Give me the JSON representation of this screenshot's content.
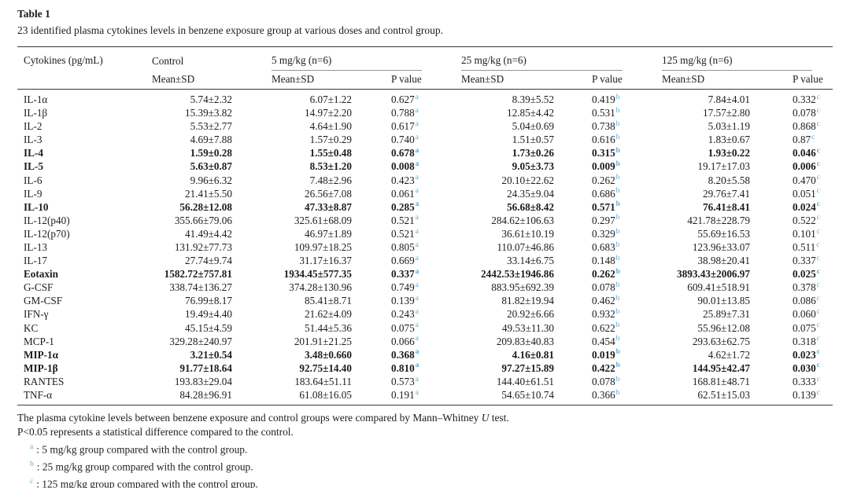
{
  "colors": {
    "superscript_blue": "#55acdb",
    "rule_dark": "#3a3a3a",
    "rule_light": "#949494"
  },
  "table": {
    "title": "Table 1",
    "caption": "23 identified plasma cytokines levels in benzene exposure group at various doses and control group.",
    "col_header": "Cytokines (pg/mL)",
    "groups": [
      {
        "label": "Control",
        "sub": [
          "Mean±SD"
        ]
      },
      {
        "label": "5 mg/kg (n=6)",
        "sub": [
          "Mean±SD",
          "P value"
        ]
      },
      {
        "label": "25 mg/kg (n=6)",
        "sub": [
          "Mean±SD",
          "P value"
        ]
      },
      {
        "label": "125 mg/kg (n=6)",
        "sub": [
          "Mean±SD",
          "P value"
        ]
      }
    ],
    "rows": [
      {
        "cytokine": "IL-1α",
        "bold": false,
        "control": "5.74±2.32",
        "doses": [
          {
            "mean": "6.07±1.22",
            "p": "0.627",
            "sup": "a"
          },
          {
            "mean": "8.39±5.52",
            "p": "0.419",
            "sup": "b"
          },
          {
            "mean": "7.84±4.01",
            "p": "0.332",
            "sup": "c"
          }
        ]
      },
      {
        "cytokine": "IL-1β",
        "bold": false,
        "control": "15.39±3.82",
        "doses": [
          {
            "mean": "14.97±2.20",
            "p": "0.788",
            "sup": "a"
          },
          {
            "mean": "12.85±4.42",
            "p": "0.531",
            "sup": "b"
          },
          {
            "mean": "17.57±2.80",
            "p": "0.078",
            "sup": "c"
          }
        ]
      },
      {
        "cytokine": "IL-2",
        "bold": false,
        "control": "5.53±2.77",
        "doses": [
          {
            "mean": "4.64±1.90",
            "p": "0.617",
            "sup": "a"
          },
          {
            "mean": "5.04±0.69",
            "p": "0.738",
            "sup": "b"
          },
          {
            "mean": "5.03±1.19",
            "p": "0.868",
            "sup": "c"
          }
        ]
      },
      {
        "cytokine": "IL-3",
        "bold": false,
        "control": "4.69±7.88",
        "doses": [
          {
            "mean": "1.57±0.29",
            "p": "0.740",
            "sup": "a"
          },
          {
            "mean": "1.51±0.57",
            "p": "0.616",
            "sup": "b"
          },
          {
            "mean": "1.83±0.67",
            "p": "0.87",
            "sup": "c"
          }
        ]
      },
      {
        "cytokine": "IL-4",
        "bold": true,
        "control": "1.59±0.28",
        "doses": [
          {
            "mean": "1.55±0.48",
            "p": "0.678",
            "sup": "a"
          },
          {
            "mean": "1.73±0.26",
            "p": "0.315",
            "sup": "b"
          },
          {
            "mean": "1.93±0.22",
            "p": "0.046",
            "sup": "c"
          }
        ]
      },
      {
        "cytokine": "IL-5",
        "bold": true,
        "control": "5.63±0.87",
        "doses": [
          {
            "mean": "8.53±1.20",
            "p": "0.008",
            "sup": "a"
          },
          {
            "mean": "9.05±3.73",
            "p": "0.009",
            "sup": "b"
          },
          {
            "mean": "19.17±17.03",
            "mean_bold": false,
            "p": "0.006",
            "sup": "c"
          }
        ]
      },
      {
        "cytokine": "IL-6",
        "bold": false,
        "control": "9.96±6.32",
        "doses": [
          {
            "mean": "7.48±2.96",
            "p": "0.423",
            "sup": "a"
          },
          {
            "mean": "20.10±22.62",
            "p": "0.262",
            "sup": "b"
          },
          {
            "mean": "8.20±5.58",
            "p": "0.470",
            "sup": "c"
          }
        ]
      },
      {
        "cytokine": "IL-9",
        "bold": false,
        "control": "21.41±5.50",
        "doses": [
          {
            "mean": "26.56±7.08",
            "p": "0.061",
            "sup": "a"
          },
          {
            "mean": "24.35±9.04",
            "p": "0.686",
            "sup": "b"
          },
          {
            "mean": "29.76±7.41",
            "p": "0.051",
            "sup": "c"
          }
        ]
      },
      {
        "cytokine": "IL-10",
        "bold": true,
        "control": "56.28±12.08",
        "doses": [
          {
            "mean": "47.33±8.87",
            "p": "0.285",
            "sup": "a"
          },
          {
            "mean": "56.68±8.42",
            "p": "0.571",
            "sup": "b"
          },
          {
            "mean": "76.41±8.41",
            "p": "0.024",
            "sup": "c"
          }
        ]
      },
      {
        "cytokine": "IL-12(p40)",
        "bold": false,
        "control": "355.66±79.06",
        "doses": [
          {
            "mean": "325.61±68.09",
            "p": "0.521",
            "sup": "a"
          },
          {
            "mean": "284.62±106.63",
            "p": "0.297",
            "sup": "b"
          },
          {
            "mean": "421.78±228.79",
            "p": "0.522",
            "sup": "c"
          }
        ]
      },
      {
        "cytokine": "IL-12(p70)",
        "bold": false,
        "control": "41.49±4.42",
        "doses": [
          {
            "mean": "46.97±1.89",
            "p": "0.521",
            "sup": "a"
          },
          {
            "mean": "36.61±10.19",
            "p": "0.329",
            "sup": "b"
          },
          {
            "mean": "55.69±16.53",
            "p": "0.101",
            "sup": "c"
          }
        ]
      },
      {
        "cytokine": "IL-13",
        "bold": false,
        "control": "131.92±77.73",
        "doses": [
          {
            "mean": "109.97±18.25",
            "p": "0.805",
            "sup": "a"
          },
          {
            "mean": "110.07±46.86",
            "p": "0.683",
            "sup": "b"
          },
          {
            "mean": "123.96±33.07",
            "p": "0.511",
            "sup": "c"
          }
        ]
      },
      {
        "cytokine": "IL-17",
        "bold": false,
        "control": "27.74±9.74",
        "doses": [
          {
            "mean": "31.17±16.37",
            "p": "0.669",
            "sup": "a"
          },
          {
            "mean": "33.14±6.75",
            "p": "0.148",
            "sup": "b"
          },
          {
            "mean": "38.98±20.41",
            "p": "0.337",
            "sup": "c"
          }
        ]
      },
      {
        "cytokine": "Eotaxin",
        "bold": true,
        "control": "1582.72±757.81",
        "doses": [
          {
            "mean": "1934.45±577.35",
            "p": "0.337",
            "sup": "a"
          },
          {
            "mean": "2442.53±1946.86",
            "p": "0.262",
            "sup": "b"
          },
          {
            "mean": "3893.43±2006.97",
            "p": "0.025",
            "sup": "c"
          }
        ]
      },
      {
        "cytokine": "G-CSF",
        "bold": false,
        "control": "338.74±136.27",
        "doses": [
          {
            "mean": "374.28±130.96",
            "p": "0.749",
            "sup": "a"
          },
          {
            "mean": "883.95±692.39",
            "p": "0.078",
            "sup": "b"
          },
          {
            "mean": "609.41±518.91",
            "p": "0.378",
            "sup": "c"
          }
        ]
      },
      {
        "cytokine": "GM-CSF",
        "bold": false,
        "control": "76.99±8.17",
        "doses": [
          {
            "mean": "85.41±8.71",
            "p": "0.139",
            "sup": "a"
          },
          {
            "mean": "81.82±19.94",
            "p": "0.462",
            "sup": "b"
          },
          {
            "mean": "90.01±13.85",
            "p": "0.086",
            "sup": "c"
          }
        ]
      },
      {
        "cytokine": "IFN-γ",
        "bold": false,
        "control": "19.49±4.40",
        "doses": [
          {
            "mean": "21.62±4.09",
            "p": "0.243",
            "sup": "a"
          },
          {
            "mean": "20.92±6.66",
            "p": "0.932",
            "sup": "b"
          },
          {
            "mean": "25.89±7.31",
            "p": "0.060",
            "sup": "c"
          }
        ]
      },
      {
        "cytokine": "KC",
        "bold": false,
        "control": "45.15±4.59",
        "doses": [
          {
            "mean": "51.44±5.36",
            "p": "0.075",
            "sup": "a"
          },
          {
            "mean": "49.53±11.30",
            "p": "0.622",
            "sup": "b"
          },
          {
            "mean": "55.96±12.08",
            "p": "0.075",
            "sup": "c"
          }
        ]
      },
      {
        "cytokine": "MCP-1",
        "bold": false,
        "control": "329.28±240.97",
        "doses": [
          {
            "mean": "201.91±21.25",
            "p": "0.066",
            "sup": "a"
          },
          {
            "mean": "209.83±40.83",
            "p": "0.454",
            "sup": "b"
          },
          {
            "mean": "293.63±62.75",
            "p": "0.318",
            "sup": "c"
          }
        ]
      },
      {
        "cytokine": "MIP-1α",
        "bold": true,
        "control": "3.21±0.54",
        "doses": [
          {
            "mean": "3.48±0.660",
            "p": "0.368",
            "sup": "a"
          },
          {
            "mean": "4.16±0.81",
            "p": "0.019",
            "sup": "b"
          },
          {
            "mean": "4.62±1.72",
            "mean_bold": false,
            "p": "0.023",
            "sup": "c"
          }
        ]
      },
      {
        "cytokine": "MIP-1β",
        "bold": true,
        "control": "91.77±18.64",
        "doses": [
          {
            "mean": "92.75±14.40",
            "p": "0.810",
            "sup": "a"
          },
          {
            "mean": "97.27±15.89",
            "p": "0.422",
            "sup": "b"
          },
          {
            "mean": "144.95±42.47",
            "p": "0.030",
            "sup": "c"
          }
        ]
      },
      {
        "cytokine": "RANTES",
        "bold": false,
        "control": "193.83±29.04",
        "doses": [
          {
            "mean": "183.64±51.11",
            "p": "0.573",
            "sup": "a"
          },
          {
            "mean": "144.40±61.51",
            "p": "0.078",
            "sup": "b"
          },
          {
            "mean": "168.81±48.71",
            "p": "0.333",
            "sup": "c"
          }
        ]
      },
      {
        "cytokine": "TNF-α",
        "bold": false,
        "control": "84.28±96.91",
        "doses": [
          {
            "mean": "61.08±16.05",
            "p": "0.191",
            "sup": "a"
          },
          {
            "mean": "54.65±10.74",
            "p": "0.366",
            "sup": "b"
          },
          {
            "mean": "62.51±15.03",
            "p": "0.139",
            "sup": "c"
          }
        ]
      }
    ]
  },
  "footnotes": {
    "compare_pre": "The plasma cytokine levels between benzene exposure and control groups were compared by Mann–Whitney ",
    "compare_italic": "U",
    "compare_post": " test.",
    "significance": "P<0.05 represents a statistical difference compared to the control.",
    "items": [
      {
        "sup": "a",
        "text": ": 5 mg/kg group compared with the control group."
      },
      {
        "sup": "b",
        "text": ": 25 mg/kg group compared with the control group."
      },
      {
        "sup": "c",
        "text": ": 125 mg/kg group compared with the control group."
      }
    ]
  }
}
